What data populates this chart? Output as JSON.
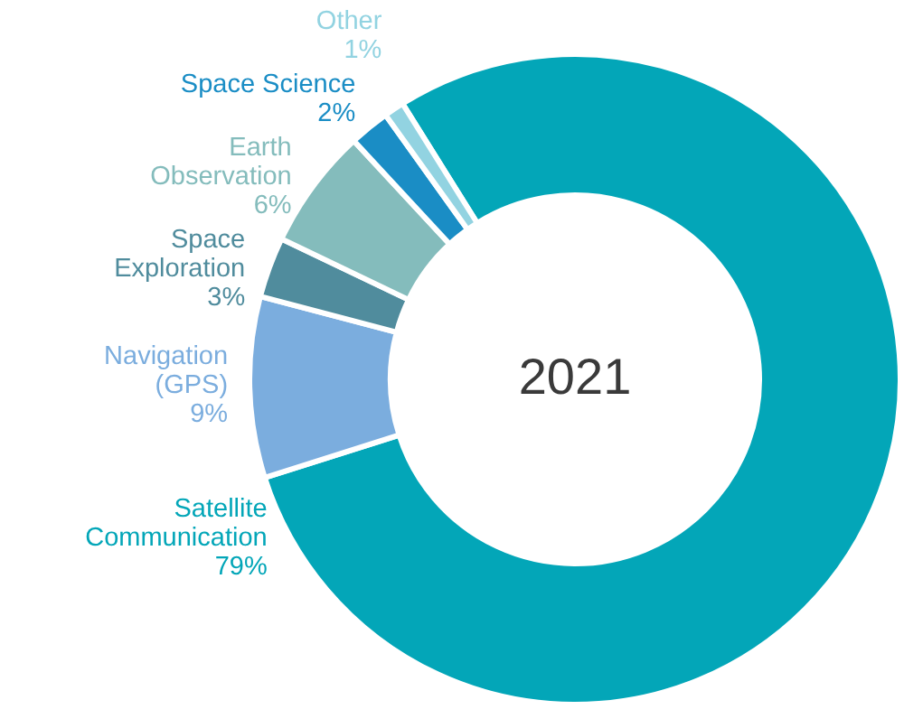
{
  "chart_data": {
    "type": "donut",
    "title": "2021",
    "categories": [
      "Satellite Communication",
      "Navigation (GPS)",
      "Space Exploration",
      "Earth Observation",
      "Space Science",
      "Other"
    ],
    "values": [
      79,
      9,
      3,
      6,
      2,
      1
    ],
    "value_labels": [
      "79%",
      "9%",
      "3%",
      "6%",
      "2%",
      "1%"
    ],
    "colors": [
      "#03a6b8",
      "#7badde",
      "#508c9d",
      "#84bcbc",
      "#1a8dc5",
      "#92d3e1"
    ]
  }
}
